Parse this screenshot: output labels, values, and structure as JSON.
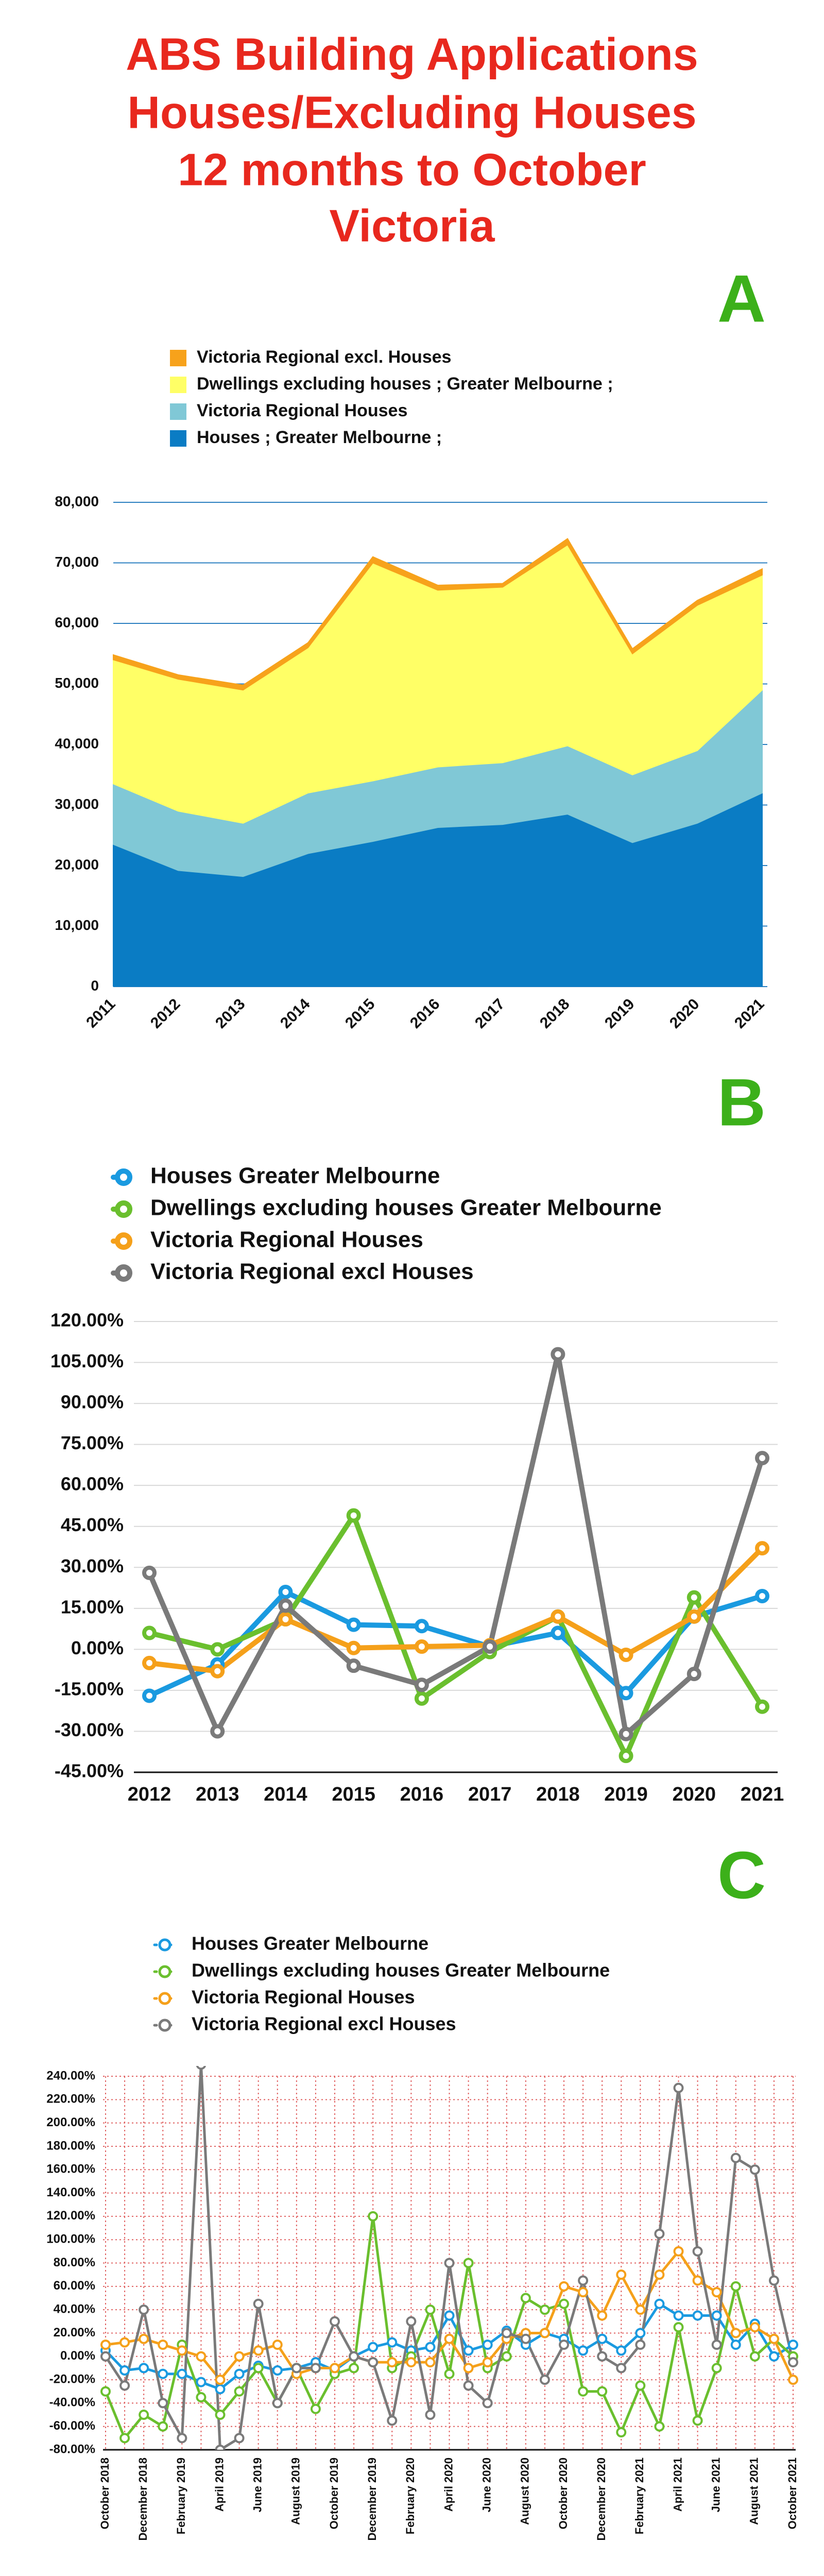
{
  "page_title": [
    "ABS Building Applications",
    "Houses/Excluding Houses",
    "12 months to October",
    "Victoria"
  ],
  "chart_data": [
    {
      "type": "area",
      "label": "A",
      "categories": [
        "2011",
        "2012",
        "2013",
        "2014",
        "2015",
        "2016",
        "2017",
        "2018",
        "2019",
        "2020",
        "2021"
      ],
      "series": [
        {
          "name": "Houses ;  Greater Melbourne ;",
          "color": "#0a7cc4",
          "values": [
            23500,
            19200,
            18200,
            22000,
            24000,
            26300,
            26800,
            28500,
            23800,
            27000,
            32000
          ]
        },
        {
          "name": "Victoria Regional Houses",
          "color": "#80c8d6",
          "values": [
            10000,
            9800,
            8800,
            10000,
            10000,
            10000,
            10200,
            11300,
            11200,
            12000,
            17000
          ]
        },
        {
          "name": "Dwellings excluding houses ;  Greater Melbourne ;",
          "color": "#ffff66",
          "values": [
            20500,
            21800,
            22000,
            24000,
            36000,
            29200,
            29000,
            33200,
            20000,
            24000,
            19000
          ]
        },
        {
          "name": "Victoria Regional excl. Houses",
          "color": "#f7a21b",
          "values": [
            800,
            700,
            800,
            800,
            1000,
            800,
            600,
            1000,
            800,
            800,
            1000
          ]
        }
      ],
      "ylim": [
        0,
        80000
      ],
      "yticks": [
        0,
        {
          "value": 10000,
          "label": "10,000"
        },
        {
          "value": 20000,
          "label": "20,000"
        },
        {
          "value": 30000,
          "label": "30,000"
        },
        {
          "value": 40000,
          "label": "40,000"
        },
        {
          "value": 50000,
          "label": "50,000"
        },
        {
          "value": 60000,
          "label": "60,000"
        },
        {
          "value": 70000,
          "label": "70,000"
        },
        {
          "value": 80000,
          "label": "80,000"
        }
      ],
      "grid": true,
      "grid_color": "#2a7fc0"
    },
    {
      "type": "line",
      "label": "B",
      "categories": [
        "2012",
        "2013",
        "2014",
        "2015",
        "2016",
        "2017",
        "2018",
        "2019",
        "2020",
        "2021"
      ],
      "series": [
        {
          "name": "Houses Greater Melbourne",
          "color": "#1a9ae0",
          "values": [
            -17,
            -5.5,
            21,
            9,
            8.5,
            1,
            6,
            -16,
            12,
            19.5
          ]
        },
        {
          "name": "Dwellings excluding houses Greater Melbourne",
          "color": "#6abf2e",
          "values": [
            6,
            0,
            11,
            49,
            -18,
            -1,
            12,
            -39,
            19,
            -21
          ]
        },
        {
          "name": "Victoria Regional Houses",
          "color": "#f5a01a",
          "values": [
            -5,
            -8,
            11,
            0.5,
            1,
            1.5,
            12,
            -2,
            12,
            37
          ]
        },
        {
          "name": "Victoria Regional excl Houses",
          "color": "#7a7a7a",
          "values": [
            28,
            -30,
            16,
            -6,
            -13,
            1,
            108,
            -31,
            -9,
            70
          ]
        }
      ],
      "ylim": [
        -45,
        120
      ],
      "yticks": [
        {
          "value": -45,
          "label": "-45.00%"
        },
        {
          "value": -30,
          "label": "-30.00%"
        },
        {
          "value": -15,
          "label": "-15.00%"
        },
        {
          "value": 0,
          "label": "0.00%"
        },
        {
          "value": 15,
          "label": "15.00%"
        },
        {
          "value": 30,
          "label": "30.00%"
        },
        {
          "value": 45,
          "label": "45.00%"
        },
        {
          "value": 60,
          "label": "60.00%"
        },
        {
          "value": 75,
          "label": "75.00%"
        },
        {
          "value": 90,
          "label": "90.00%"
        },
        {
          "value": 105,
          "label": "105.00%"
        },
        {
          "value": 120,
          "label": "120.00%"
        }
      ],
      "grid": true,
      "grid_color": "#d8d8d8"
    },
    {
      "type": "line",
      "label": "C",
      "categories": [
        "October 2018",
        null,
        "December 2018",
        null,
        "February 2019",
        null,
        "April 2019",
        null,
        "June 2019",
        null,
        "August 2019",
        null,
        "October 2019",
        null,
        "December 2019",
        null,
        "February 2020",
        null,
        "April 2020",
        null,
        "June 2020",
        null,
        "August 2020",
        null,
        "October 2020",
        null,
        "December 2020",
        null,
        "February 2021",
        null,
        "April 2021",
        null,
        "June 2021",
        null,
        "August 2021",
        null,
        "October 2021"
      ],
      "series": [
        {
          "name": "Houses Greater Melbourne",
          "color": "#1a9ae0",
          "values": [
            5,
            -12,
            -10,
            -15,
            -15,
            -22,
            -28,
            -15,
            -8,
            -12,
            -10,
            -5,
            -12,
            0,
            8,
            12,
            5,
            8,
            35,
            5,
            10,
            22,
            10,
            20,
            15,
            5,
            15,
            5,
            20,
            45,
            35,
            35,
            35,
            10,
            28,
            0,
            10
          ]
        },
        {
          "name": "Dwellings excluding houses Greater Melbourne",
          "color": "#6abf2e",
          "values": [
            -30,
            -70,
            -50,
            -60,
            10,
            -35,
            -50,
            -30,
            -10,
            -40,
            -10,
            -45,
            -15,
            -10,
            120,
            -10,
            0,
            40,
            -15,
            80,
            -10,
            0,
            50,
            40,
            45,
            -30,
            -30,
            -65,
            -25,
            -60,
            25,
            -55,
            -10,
            60,
            0,
            15,
            0
          ]
        },
        {
          "name": "Victoria Regional Houses",
          "color": "#f5a01a",
          "values": [
            10,
            12,
            15,
            10,
            5,
            0,
            -20,
            0,
            5,
            10,
            -15,
            -10,
            -10,
            0,
            -5,
            -5,
            -5,
            -5,
            15,
            -10,
            -5,
            15,
            20,
            20,
            60,
            55,
            35,
            70,
            40,
            70,
            90,
            65,
            55,
            20,
            25,
            15,
            -20
          ]
        },
        {
          "name": "Victoria Regional excl Houses",
          "color": "#7a7a7a",
          "values": [
            0,
            -25,
            40,
            -40,
            -70,
            250,
            -80,
            -70,
            45,
            -40,
            -10,
            -10,
            30,
            0,
            -5,
            -55,
            30,
            -50,
            80,
            -25,
            -40,
            20,
            15,
            -20,
            10,
            65,
            0,
            -10,
            10,
            105,
            230,
            90,
            10,
            170,
            160,
            65,
            -5
          ]
        }
      ],
      "ylim": [
        -80,
        240
      ],
      "yticks": [
        {
          "value": -80,
          "label": "-80.00%"
        },
        {
          "value": -60,
          "label": "-60.00%"
        },
        {
          "value": -40,
          "label": "-40.00%"
        },
        {
          "value": -20,
          "label": "-20.00%"
        },
        {
          "value": 0,
          "label": "0.00%"
        },
        {
          "value": 20,
          "label": "20.00%"
        },
        {
          "value": 40,
          "label": "40.00%"
        },
        {
          "value": 60,
          "label": "60.00%"
        },
        {
          "value": 80,
          "label": "80.00%"
        },
        {
          "value": 100,
          "label": "100.00%"
        },
        {
          "value": 120,
          "label": "120.00%"
        },
        {
          "value": 140,
          "label": "140.00%"
        },
        {
          "value": 160,
          "label": "160.00%"
        },
        {
          "value": 180,
          "label": "180.00%"
        },
        {
          "value": 200,
          "label": "200.00%"
        },
        {
          "value": 220,
          "label": "220.00%"
        },
        {
          "value": 240,
          "label": "240.00%"
        }
      ],
      "grid": true,
      "xgrid": true,
      "grid_color": "#e06060"
    }
  ]
}
